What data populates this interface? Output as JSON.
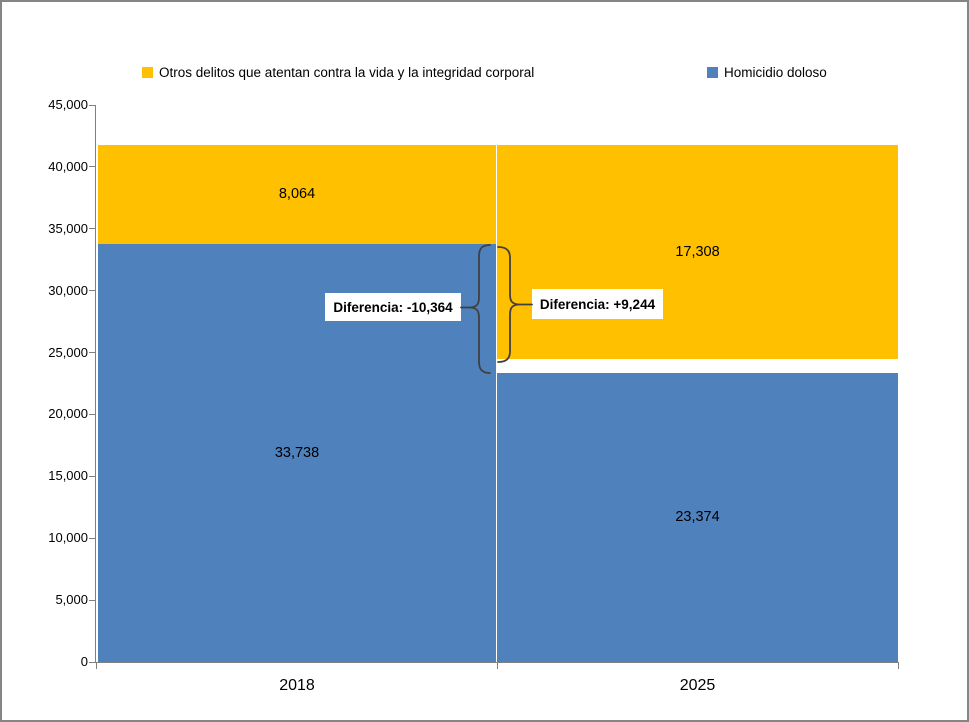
{
  "legend": {
    "items": [
      {
        "label": "Otros delitos que atentan contra la vida y la integridad corporal",
        "color": "#FFC000"
      },
      {
        "label": "Homicidio doloso",
        "color": "#4F81BD"
      }
    ]
  },
  "chart_data": {
    "type": "bar",
    "subtype": "stacked",
    "categories": [
      "2018",
      "2025"
    ],
    "series": [
      {
        "name": "Homicidio doloso",
        "color": "#4F81BD",
        "values": [
          33738,
          23374
        ],
        "labels": [
          "33,738",
          "23,374"
        ],
        "base_offsets": [
          0,
          0
        ]
      },
      {
        "name": "Otros delitos que atentan contra la vida y la integridad corporal",
        "color": "#FFC000",
        "values": [
          8064,
          17308
        ],
        "labels": [
          "8,064",
          "17,308"
        ],
        "base_offsets": [
          0,
          1120
        ]
      }
    ],
    "ylim": [
      0,
      45000
    ],
    "yticks": [
      0,
      5000,
      10000,
      15000,
      20000,
      25000,
      30000,
      35000,
      40000,
      45000
    ],
    "ytick_labels": [
      "0",
      "5,000",
      "10,000",
      "15,000",
      "20,000",
      "25,000",
      "30,000",
      "35,000",
      "40,000",
      "45,000"
    ],
    "grid": false,
    "legend_position": "top",
    "axis_color": "#808080",
    "annotations": [
      {
        "text": "Diferencia: -10,364",
        "series": "Homicidio doloso",
        "from": 33738,
        "to": 23374
      },
      {
        "text": "Diferencia: +9,244",
        "series": "Otros delitos que atentan contra la vida y la integridad corporal",
        "from": 8064,
        "to": 17308
      }
    ]
  }
}
